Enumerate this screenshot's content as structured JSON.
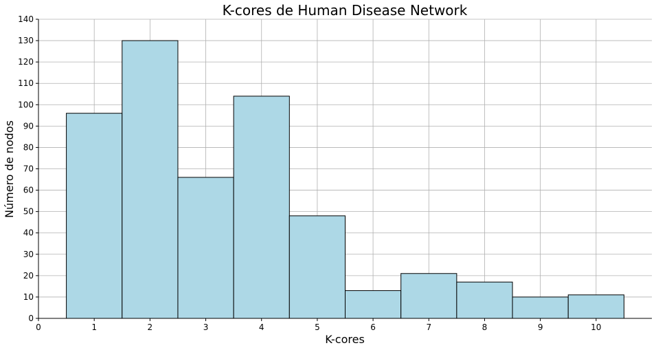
{
  "chart_data": {
    "type": "bar",
    "title": "K-cores de Human Disease Network",
    "xlabel": "K-cores",
    "ylabel": "Número de nodos",
    "categories": [
      1,
      2,
      3,
      4,
      5,
      6,
      7,
      8,
      9,
      10
    ],
    "values": [
      96,
      130,
      66,
      104,
      48,
      13,
      21,
      17,
      10,
      11
    ],
    "xlim": [
      0,
      11
    ],
    "ylim": [
      0,
      140
    ],
    "xticks": [
      0,
      1,
      2,
      3,
      4,
      5,
      6,
      7,
      8,
      9,
      10
    ],
    "yticks": [
      0,
      10,
      20,
      30,
      40,
      50,
      60,
      70,
      80,
      90,
      100,
      110,
      120,
      130,
      140
    ],
    "bar_width": 1,
    "grid": true,
    "colors": {
      "bar_fill": "#add8e6",
      "bar_edge": "#000000",
      "grid": "#b0b0b0"
    }
  }
}
